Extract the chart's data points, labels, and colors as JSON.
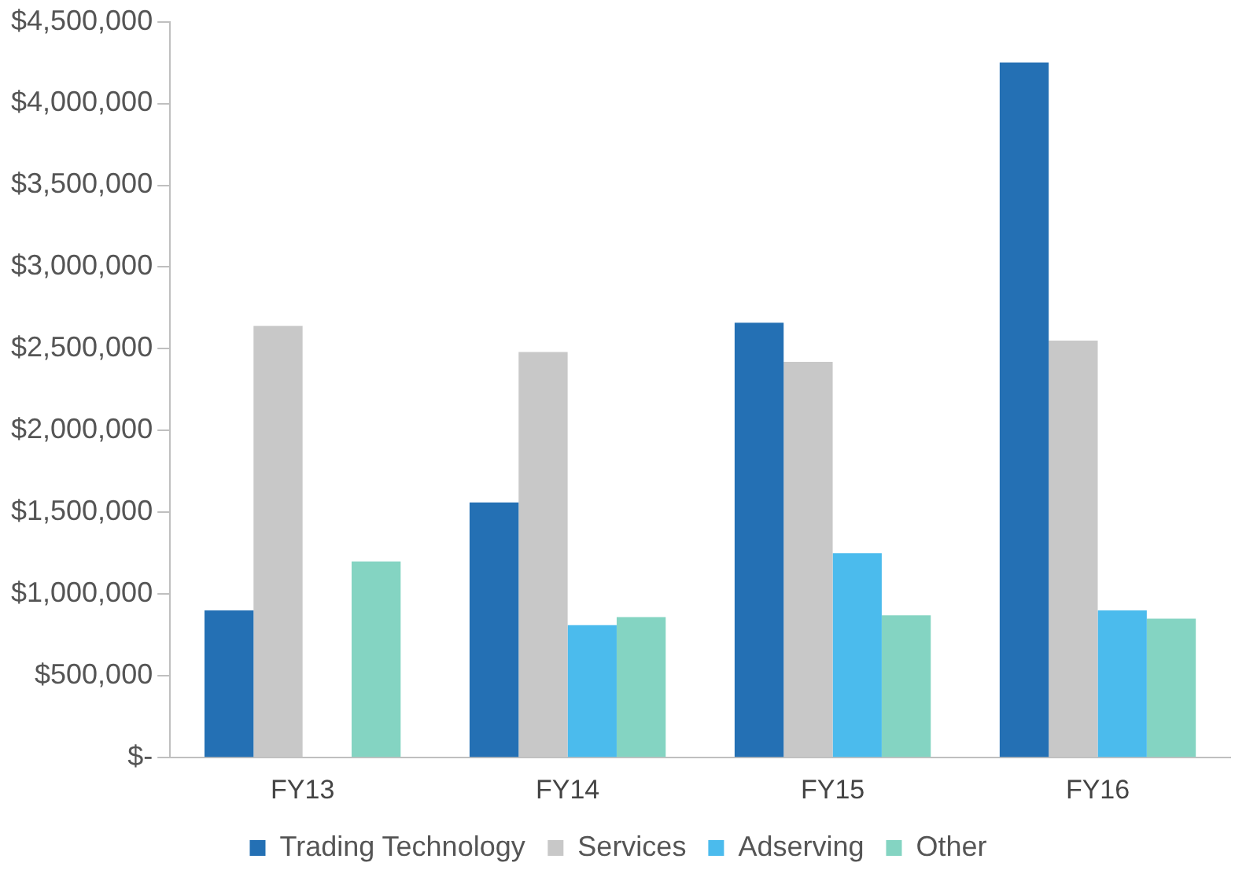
{
  "chart_data": {
    "type": "bar",
    "categories": [
      "FY13",
      "FY14",
      "FY15",
      "FY16"
    ],
    "series": [
      {
        "name": "Trading Technology",
        "color": "#2470b4",
        "values": [
          900000,
          1560000,
          2660000,
          4250000
        ]
      },
      {
        "name": "Services",
        "color": "#c8c8c8",
        "values": [
          2640000,
          2480000,
          2420000,
          2550000
        ]
      },
      {
        "name": "Adserving",
        "color": "#4bbbed",
        "values": [
          null,
          810000,
          1250000,
          900000
        ]
      },
      {
        "name": "Other",
        "color": "#84d4c2",
        "values": [
          1200000,
          860000,
          870000,
          850000
        ]
      }
    ],
    "ylim": [
      0,
      4500000
    ],
    "yticks": [
      {
        "value": 0,
        "label": "$-"
      },
      {
        "value": 500000,
        "label": "$500,000"
      },
      {
        "value": 1000000,
        "label": "$1,000,000"
      },
      {
        "value": 1500000,
        "label": "$1,500,000"
      },
      {
        "value": 2000000,
        "label": "$2,000,000"
      },
      {
        "value": 2500000,
        "label": "$2,500,000"
      },
      {
        "value": 3000000,
        "label": "$3,000,000"
      },
      {
        "value": 3500000,
        "label": "$3,500,000"
      },
      {
        "value": 4000000,
        "label": "$4,000,000"
      },
      {
        "value": 4500000,
        "label": "$4,500,000"
      }
    ],
    "grid": false,
    "legend": "bottom"
  }
}
